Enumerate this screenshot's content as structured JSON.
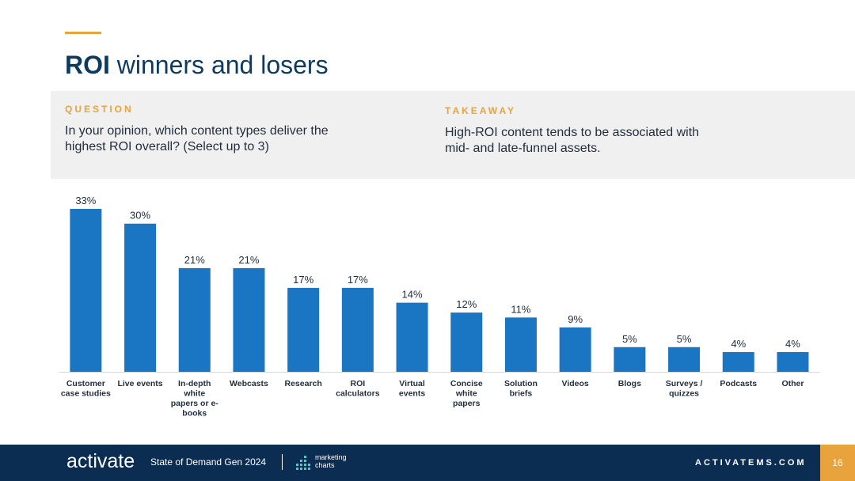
{
  "header": {
    "title_bold": "ROI",
    "title_rest": " winners and losers"
  },
  "question": {
    "label": "QUESTION",
    "text": "In your opinion, which content types deliver the highest ROI overall? (Select up to 3)"
  },
  "takeaway": {
    "label": "TAKEAWAY",
    "text": "High-ROI content tends to be associated with mid- and late-funnel assets."
  },
  "chart_data": {
    "type": "bar",
    "categories": [
      "Customer case studies",
      "Live events",
      "In-depth white papers or e-books",
      "Webcasts",
      "Research",
      "ROI calculators",
      "Virtual events",
      "Concise white papers",
      "Solution briefs",
      "Videos",
      "Blogs",
      "Surveys / quizzes",
      "Podcasts",
      "Other"
    ],
    "category_lines": [
      [
        "Customer",
        "case studies"
      ],
      [
        "Live events"
      ],
      [
        "In-depth",
        "white",
        "papers or e-",
        "books"
      ],
      [
        "Webcasts"
      ],
      [
        "Research"
      ],
      [
        "ROI",
        "calculators"
      ],
      [
        "Virtual",
        "events"
      ],
      [
        "Concise",
        "white",
        "papers"
      ],
      [
        "Solution",
        "briefs"
      ],
      [
        "Videos"
      ],
      [
        "Blogs"
      ],
      [
        "Surveys /",
        "quizzes"
      ],
      [
        "Podcasts"
      ],
      [
        "Other"
      ]
    ],
    "values": [
      33,
      30,
      21,
      21,
      17,
      17,
      14,
      12,
      11,
      9,
      5,
      5,
      4,
      4
    ],
    "data_labels": [
      "33%",
      "30%",
      "21%",
      "21%",
      "17%",
      "17%",
      "14%",
      "12%",
      "11%",
      "9%",
      "5%",
      "5%",
      "4%",
      "4%"
    ],
    "ylim": [
      0,
      33
    ],
    "bar_color": "#1a76c2",
    "grid": false,
    "legend": "none"
  },
  "footer": {
    "logo": "activate",
    "report": "State of Demand Gen 2024",
    "partner_line1": "marketing",
    "partner_line2": "charts",
    "site": "ACTIVATEMS.COM",
    "page": "16"
  },
  "colors": {
    "navy": "#0b2d52",
    "title": "#0e3a5e",
    "accent": "#e8a33d",
    "panel": "#f0f0f0",
    "bar": "#1a76c2"
  }
}
